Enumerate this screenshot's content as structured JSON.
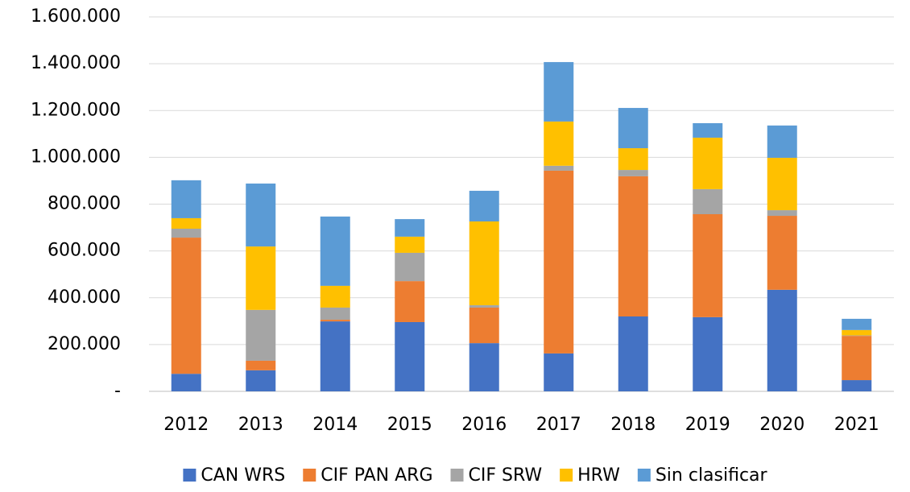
{
  "chart_data": {
    "type": "stacked_bar",
    "categories": [
      "2012",
      "2013",
      "2014",
      "2015",
      "2016",
      "2017",
      "2018",
      "2019",
      "2020",
      "2021"
    ],
    "series": [
      {
        "name": "CAN WRS",
        "color": "#4472c4",
        "values": [
          75000,
          90000,
          299000,
          296000,
          206000,
          162000,
          320000,
          317000,
          434000,
          48000
        ]
      },
      {
        "name": "CIF PAN ARG",
        "color": "#ed7d31",
        "values": [
          582000,
          41000,
          7000,
          175000,
          152000,
          781000,
          599000,
          440000,
          316000,
          189000
        ]
      },
      {
        "name": "CIF SRW",
        "color": "#a5a5a5",
        "values": [
          38000,
          217000,
          52000,
          121000,
          10000,
          21000,
          27000,
          107000,
          24000,
          2000
        ]
      },
      {
        "name": "HRW",
        "color": "#ffc000",
        "values": [
          45000,
          271000,
          93000,
          69000,
          358000,
          189000,
          93000,
          220000,
          224000,
          23000
        ]
      },
      {
        "name": "Sin clasificar",
        "color": "#5b9bd5",
        "values": [
          162000,
          269000,
          296000,
          75000,
          131000,
          254000,
          172000,
          62000,
          138000,
          48000
        ]
      }
    ],
    "ylim": [
      0,
      1600000
    ],
    "yticks": [
      {
        "value": 0,
        "label": "-"
      },
      {
        "value": 200000,
        "label": "200.000"
      },
      {
        "value": 400000,
        "label": "400.000"
      },
      {
        "value": 600000,
        "label": "600.000"
      },
      {
        "value": 800000,
        "label": "800.000"
      },
      {
        "value": 1000000,
        "label": "1.000.000"
      },
      {
        "value": 1200000,
        "label": "1.200.000"
      },
      {
        "value": 1400000,
        "label": "1.400.000"
      },
      {
        "value": 1600000,
        "label": "1.600.000"
      }
    ],
    "grid": true,
    "legend": "bottom"
  }
}
